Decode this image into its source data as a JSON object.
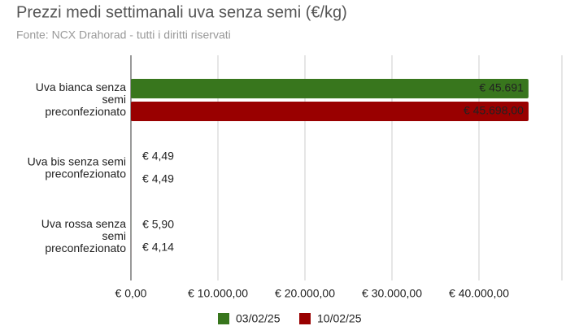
{
  "chart_data": {
    "type": "bar",
    "orientation": "horizontal",
    "title": "Prezzi medi settimanali uva senza semi (€/kg)",
    "subtitle": "Fonte: NCX Drahorad - tutti i diritti riservati",
    "categories": [
      "Uva bianca senza semi preconfezionato",
      "Uva bis senza semi preconfezionato",
      "Uva rossa senza semi preconfezionato"
    ],
    "series": [
      {
        "name": "03/02/25",
        "color": "#38761d",
        "values": [
          45691,
          4.49,
          5.9
        ],
        "value_labels": [
          "€ 45.691",
          "€ 4,49",
          "€ 5,90"
        ]
      },
      {
        "name": "10/02/25",
        "color": "#990000",
        "values": [
          45698,
          4.49,
          4.14
        ],
        "value_labels": [
          "€ 45.698,00",
          "€ 4,49",
          "€ 4,14"
        ]
      }
    ],
    "xlim": [
      0,
      50000
    ],
    "xticks": [
      {
        "value": 0,
        "label": "€ 0,00"
      },
      {
        "value": 10000,
        "label": "€ 10.000,00"
      },
      {
        "value": 20000,
        "label": "€ 20.000,00"
      },
      {
        "value": 30000,
        "label": "€ 30.000,00"
      },
      {
        "value": 40000,
        "label": "€ 40.000,00"
      }
    ],
    "grid": true,
    "legend": "bottom"
  }
}
